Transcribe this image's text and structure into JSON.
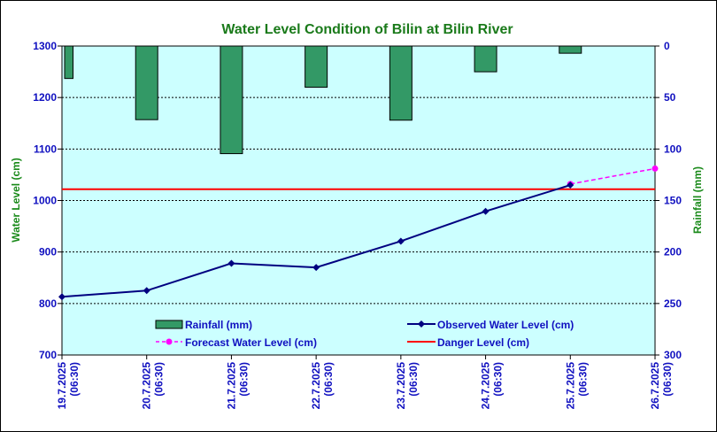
{
  "chart_data": {
    "type": "bar+line",
    "title": "Water Level Condition of Bilin at Bilin River",
    "ylabel": "Water Level (cm)",
    "y2label": "Rainfall (mm)",
    "ylim": [
      700,
      1300
    ],
    "y_ticks": [
      "700",
      "800",
      "900",
      "1000",
      "1100",
      "1200",
      "1300"
    ],
    "y2lim": [
      0,
      300
    ],
    "y2_reversed": true,
    "y2_ticks": [
      "0",
      "50",
      "100",
      "150",
      "200",
      "250",
      "300"
    ],
    "categories": [
      [
        "19.7.2025",
        "(06:30)"
      ],
      [
        "20.7.2025",
        "(06:30)"
      ],
      [
        "21.7.2025",
        "(06:30)"
      ],
      [
        "22.7.2025",
        "(06:30)"
      ],
      [
        "23.7.2025",
        "(06:30)"
      ],
      [
        "24.7.2025",
        "(06:30)"
      ],
      [
        "25.7.2025",
        "(06:30)"
      ],
      [
        "26.7.2025",
        "(06:30)"
      ]
    ],
    "series": [
      {
        "name": "Rainfall (mm)",
        "kind": "bar",
        "axis": "y2",
        "color": "#339966",
        "values": [
          31.5,
          71.5,
          104.5,
          40,
          72,
          25,
          7,
          null
        ]
      },
      {
        "name": "Observed Water Level (cm)",
        "kind": "line",
        "axis": "y",
        "color": "#000080",
        "values": [
          813,
          825,
          878,
          870,
          921,
          979,
          1030,
          null
        ]
      },
      {
        "name": "Forecast Water Level (cm)",
        "kind": "dashed-line",
        "axis": "y",
        "color": "#ff00ff",
        "values": [
          null,
          null,
          null,
          null,
          null,
          null,
          1032,
          1062
        ]
      },
      {
        "name": "Danger Level (cm)",
        "kind": "hline",
        "axis": "y",
        "color": "#ff0000",
        "value": 1022
      }
    ],
    "grid": "horizontal dashed",
    "plot_background": "#ccffff",
    "legend": "bottom-inside"
  }
}
